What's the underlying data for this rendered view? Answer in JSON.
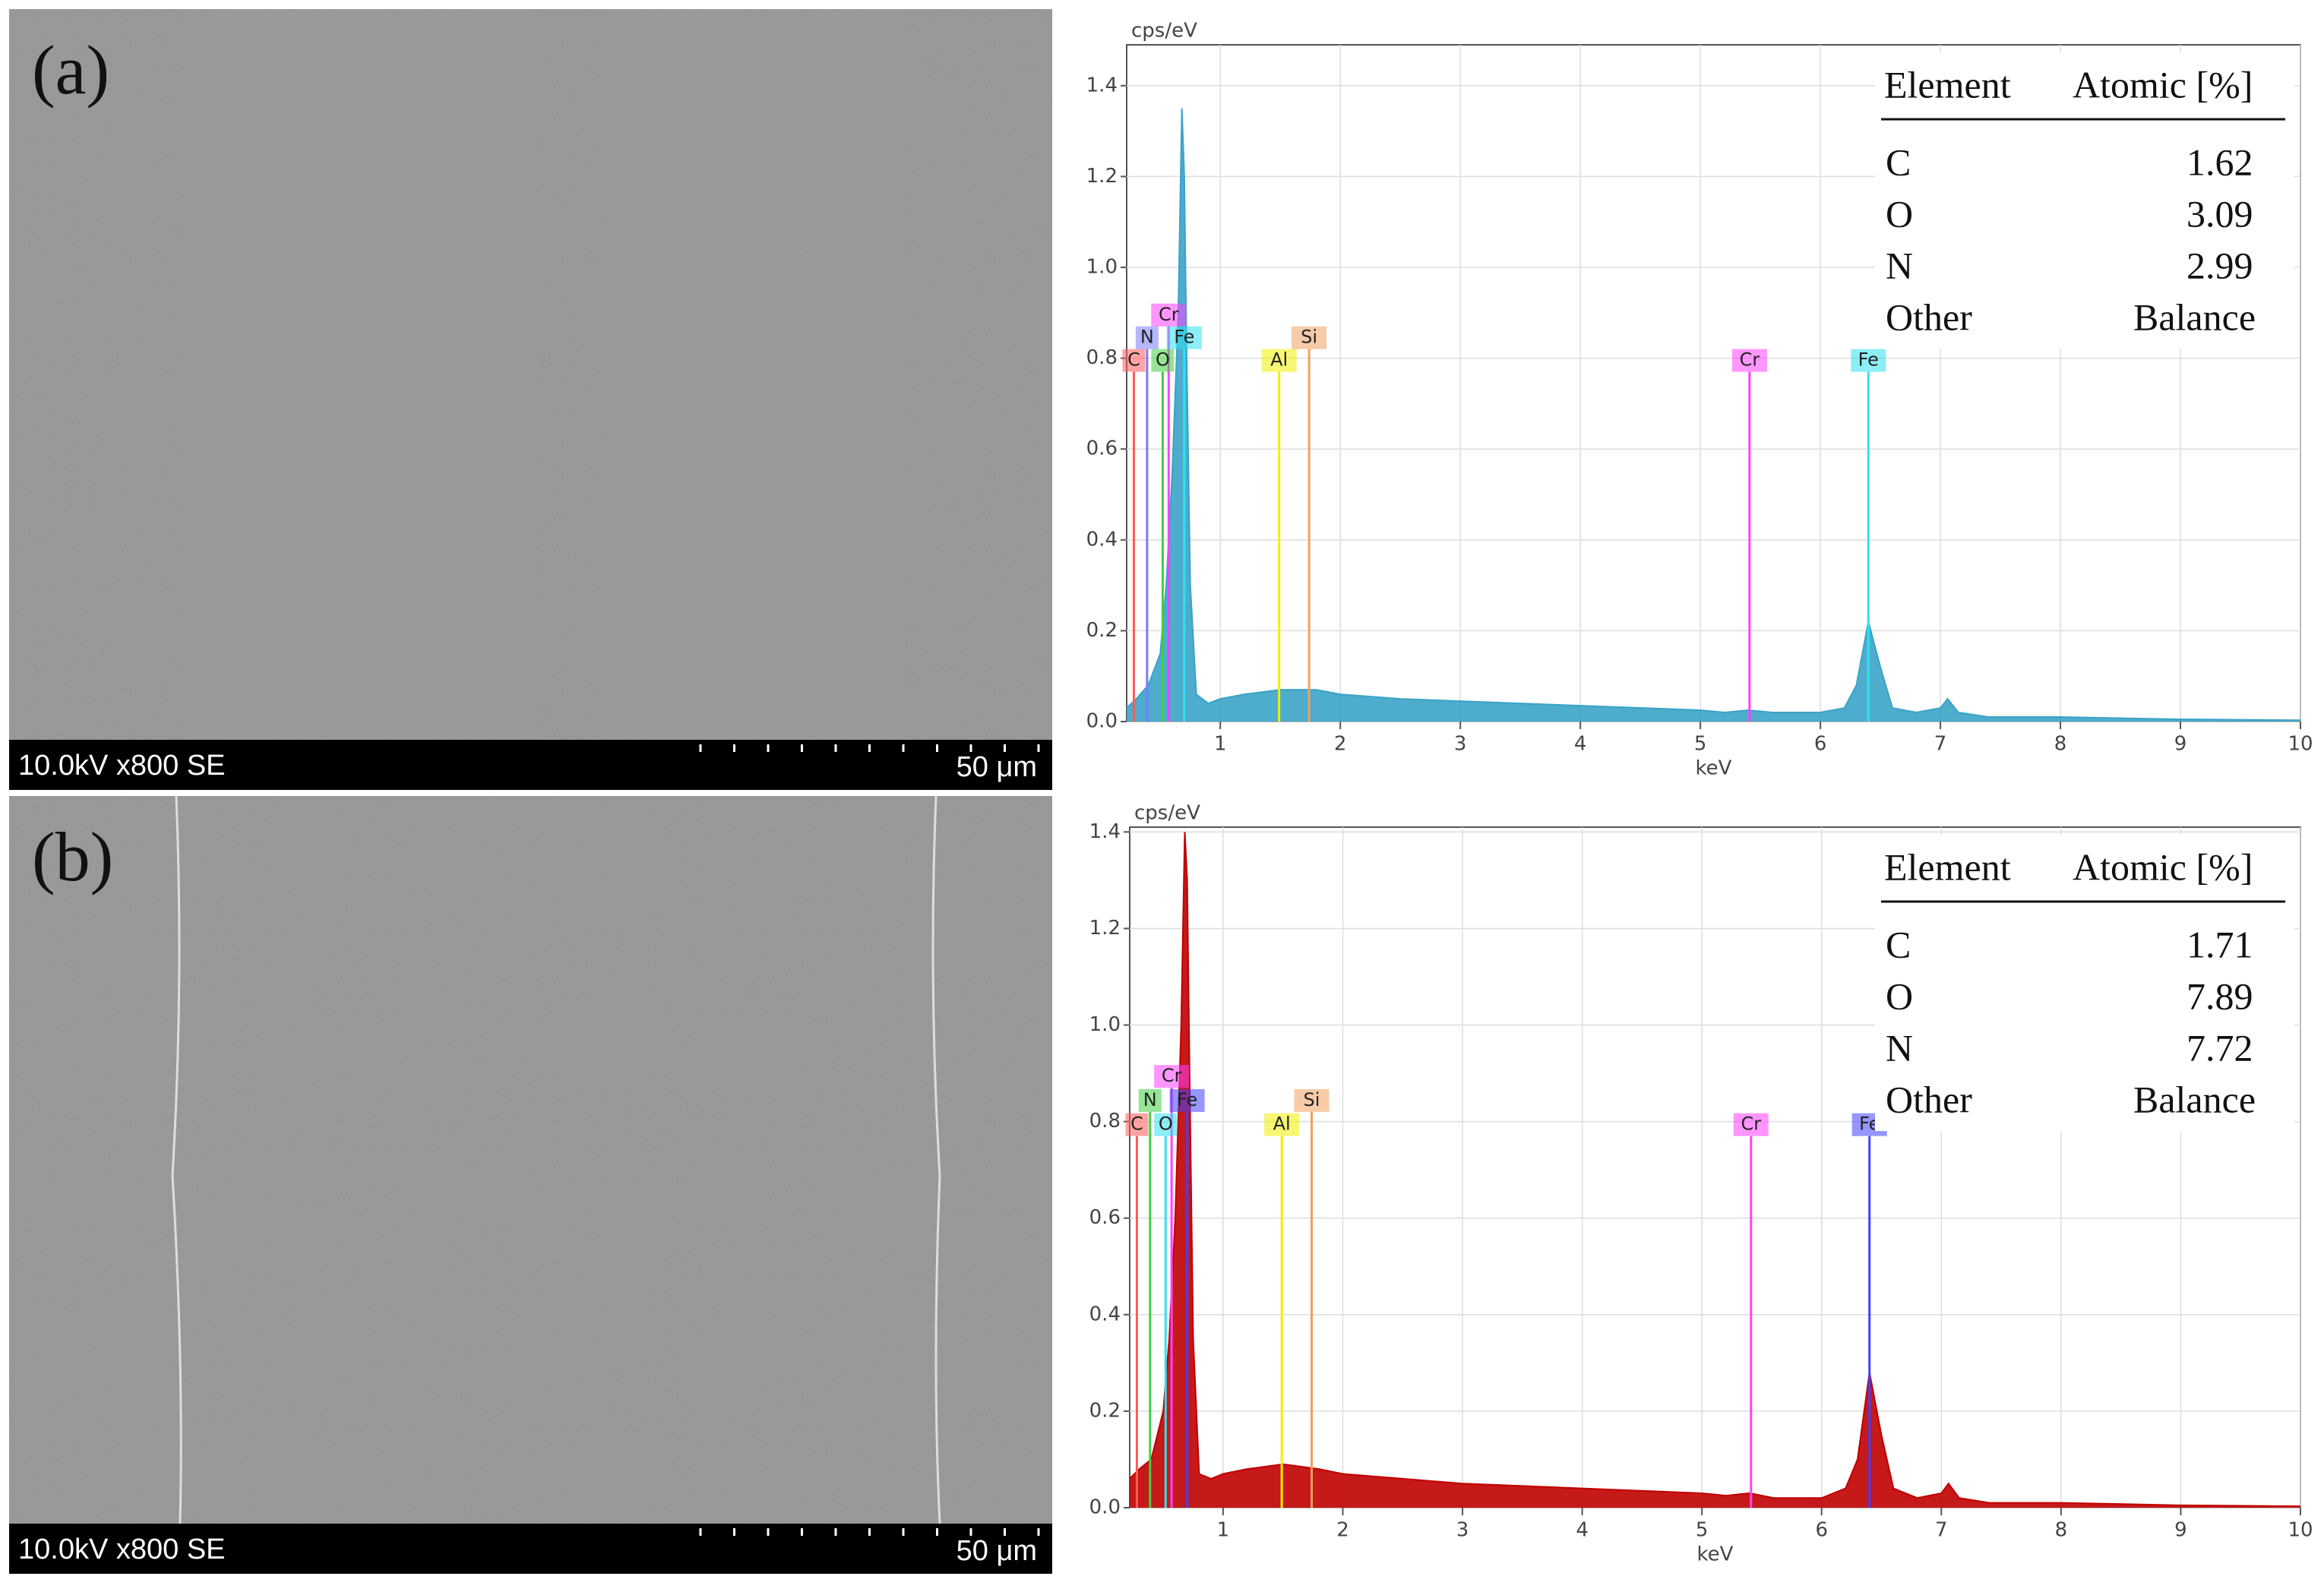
{
  "panels": [
    {
      "label": "(a)",
      "info": "10.0kV x800 SE",
      "scale": "50 μm"
    },
    {
      "label": "(b)",
      "info": "10.0kV x800 SE",
      "scale": "50 μm"
    }
  ],
  "chart_data": [
    {
      "type": "area",
      "ylabel": "cps/eV",
      "xlabel": "keV",
      "color": "#3ba3c8",
      "x": [
        0.22,
        0.3,
        0.4,
        0.5,
        0.55,
        0.6,
        0.65,
        0.68,
        0.7,
        0.72,
        0.75,
        0.8,
        0.9,
        1.0,
        1.2,
        1.5,
        1.8,
        2.0,
        2.5,
        3,
        3.5,
        4,
        4.5,
        5,
        5.2,
        5.4,
        5.6,
        5.9,
        6.0,
        6.2,
        6.3,
        6.4,
        6.5,
        6.6,
        6.8,
        7.0,
        7.06,
        7.15,
        7.4,
        8,
        9,
        10
      ],
      "values": [
        0.03,
        0.05,
        0.08,
        0.15,
        0.3,
        0.55,
        0.9,
        1.35,
        1.2,
        0.8,
        0.3,
        0.06,
        0.04,
        0.05,
        0.06,
        0.07,
        0.07,
        0.06,
        0.05,
        0.045,
        0.04,
        0.035,
        0.03,
        0.025,
        0.02,
        0.025,
        0.02,
        0.02,
        0.02,
        0.03,
        0.08,
        0.22,
        0.12,
        0.03,
        0.02,
        0.03,
        0.05,
        0.02,
        0.01,
        0.01,
        0.005,
        0.003
      ],
      "xlim": [
        0.22,
        10
      ],
      "ylim": [
        0,
        1.49
      ],
      "xticks": [
        1,
        2,
        3,
        4,
        5,
        6,
        7,
        8,
        9,
        10
      ],
      "yticks": [
        {
          "value": 0,
          "label": "0.0"
        },
        0.2,
        0.4,
        0.6,
        0.8,
        {
          "value": 1,
          "label": "1.0"
        },
        1.2,
        1.4
      ],
      "grid": true,
      "markers": [
        {
          "name": "C",
          "x": 0.28,
          "height": 0.77,
          "color": "#ff5a5a"
        },
        {
          "name": "N",
          "x": 0.39,
          "height": 0.82,
          "color": "#7a7aff"
        },
        {
          "name": "Cr",
          "x": 0.57,
          "height": 0.87,
          "color": "#ff40ff"
        },
        {
          "name": "O",
          "x": 0.52,
          "height": 0.77,
          "color": "#40d040"
        },
        {
          "name": "Fe",
          "x": 0.7,
          "height": 0.82,
          "color": "#30e0f0"
        },
        {
          "name": "Al",
          "x": 1.49,
          "height": 0.77,
          "color": "#f0f000"
        },
        {
          "name": "Si",
          "x": 1.74,
          "height": 0.82,
          "color": "#f0a060"
        },
        {
          "name": "Cr",
          "x": 5.41,
          "height": 0.77,
          "color": "#ff40ff"
        },
        {
          "name": "Fe",
          "x": 6.4,
          "height": 0.77,
          "color": "#30e0f0"
        }
      ],
      "table": {
        "header": [
          "Element",
          "Atomic [%]"
        ],
        "rows": [
          [
            "C",
            "1.62"
          ],
          [
            "O",
            "3.09"
          ],
          [
            "N",
            "2.99"
          ],
          [
            "Other",
            "Balance"
          ]
        ]
      }
    },
    {
      "type": "area",
      "ylabel": "cps/eV",
      "xlabel": "keV",
      "color": "#c00000",
      "x": [
        0.22,
        0.3,
        0.4,
        0.5,
        0.55,
        0.6,
        0.65,
        0.68,
        0.7,
        0.72,
        0.75,
        0.8,
        0.9,
        1.0,
        1.2,
        1.5,
        1.8,
        2.0,
        2.5,
        3,
        3.5,
        4,
        4.5,
        5,
        5.2,
        5.4,
        5.6,
        5.9,
        6.0,
        6.2,
        6.3,
        6.4,
        6.5,
        6.6,
        6.8,
        7.0,
        7.06,
        7.15,
        7.4,
        8,
        9,
        10
      ],
      "values": [
        0.06,
        0.08,
        0.1,
        0.2,
        0.35,
        0.6,
        1.0,
        1.4,
        1.3,
        0.9,
        0.35,
        0.07,
        0.06,
        0.07,
        0.08,
        0.09,
        0.08,
        0.07,
        0.06,
        0.05,
        0.045,
        0.04,
        0.035,
        0.03,
        0.025,
        0.03,
        0.02,
        0.02,
        0.02,
        0.04,
        0.1,
        0.28,
        0.15,
        0.04,
        0.02,
        0.03,
        0.05,
        0.02,
        0.01,
        0.01,
        0.005,
        0.003
      ],
      "xlim": [
        0.22,
        10
      ],
      "ylim": [
        0,
        1.41
      ],
      "xticks": [
        1,
        2,
        3,
        4,
        5,
        6,
        7,
        8,
        9,
        10
      ],
      "yticks": [
        {
          "value": 0,
          "label": "0.0"
        },
        0.2,
        0.4,
        0.6,
        0.8,
        {
          "value": 1,
          "label": "1.0"
        },
        1.2,
        1.4
      ],
      "grid": true,
      "markers": [
        {
          "name": "C",
          "x": 0.28,
          "height": 0.77,
          "color": "#ff5a5a"
        },
        {
          "name": "N",
          "x": 0.39,
          "height": 0.82,
          "color": "#40d040"
        },
        {
          "name": "Cr",
          "x": 0.57,
          "height": 0.87,
          "color": "#ff40ff"
        },
        {
          "name": "O",
          "x": 0.52,
          "height": 0.77,
          "color": "#30e0f0"
        },
        {
          "name": "Fe",
          "x": 0.7,
          "height": 0.82,
          "color": "#4040ff"
        },
        {
          "name": "Al",
          "x": 1.49,
          "height": 0.77,
          "color": "#f0f000"
        },
        {
          "name": "Si",
          "x": 1.74,
          "height": 0.82,
          "color": "#f0a060"
        },
        {
          "name": "Cr",
          "x": 5.41,
          "height": 0.77,
          "color": "#ff40ff"
        },
        {
          "name": "Fe",
          "x": 6.4,
          "height": 0.77,
          "color": "#4040ff"
        }
      ],
      "table": {
        "header": [
          "Element",
          "Atomic [%]"
        ],
        "rows": [
          [
            "C",
            "1.71"
          ],
          [
            "O",
            "7.89"
          ],
          [
            "N",
            "7.72"
          ],
          [
            "Other",
            "Balance"
          ]
        ]
      }
    }
  ]
}
